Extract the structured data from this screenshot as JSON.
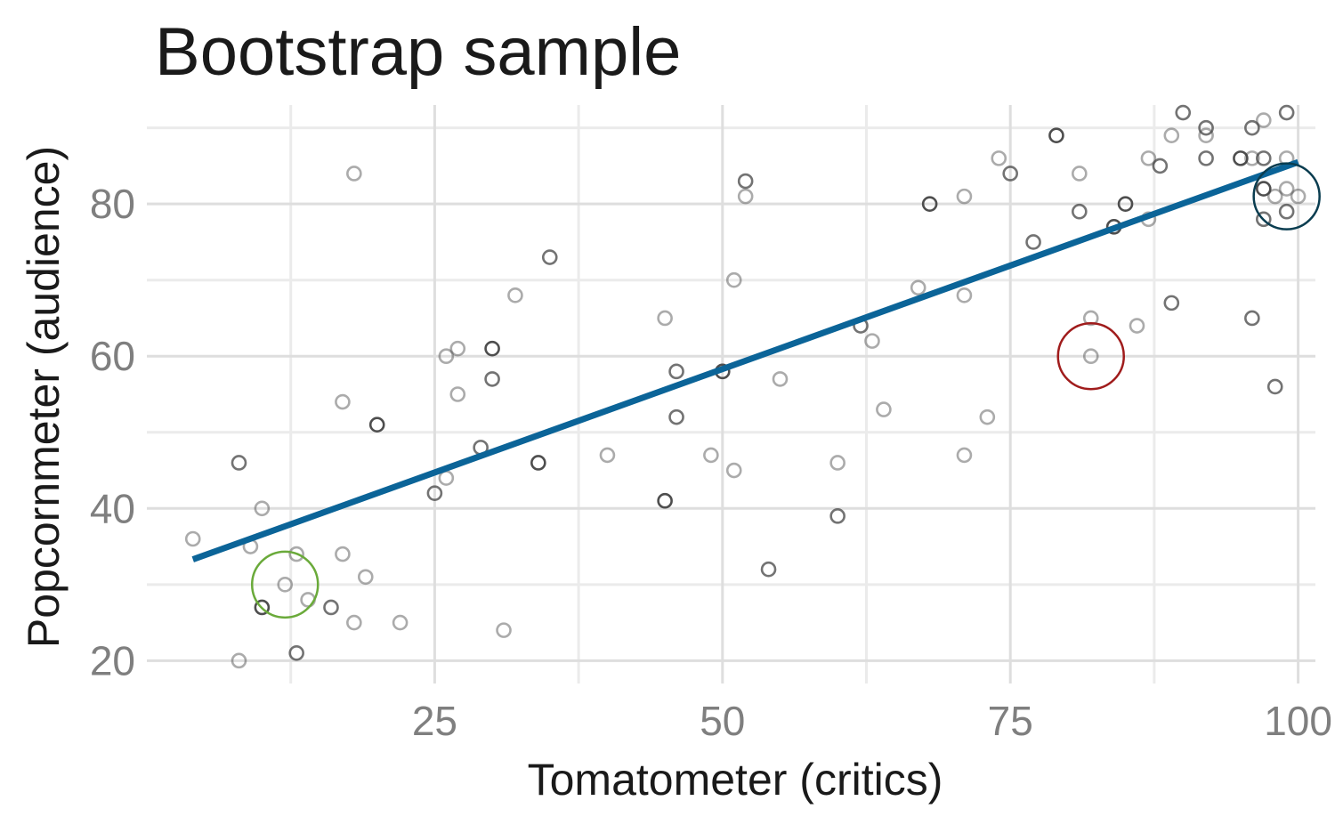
{
  "chart_data": {
    "type": "scatter",
    "title": "Bootstrap sample",
    "xlabel": "Tomatometer (critics)",
    "ylabel": "Popcornmeter (audience)",
    "xlim": [
      0,
      101.5
    ],
    "ylim": [
      17,
      93
    ],
    "x_ticks": [
      25,
      50,
      75,
      100
    ],
    "y_ticks": [
      20,
      40,
      60,
      80
    ],
    "x_minor": [
      12.5,
      37.5,
      62.5,
      87.5
    ],
    "y_minor": [
      30,
      50,
      70,
      90
    ],
    "grid": true,
    "colors": {
      "point": "#444444",
      "fit_line": "#0b6498",
      "highlight_green": "#6aaa3a",
      "highlight_red": "#a01c1c",
      "highlight_dark": "#0a3d50",
      "grid": "#dedede",
      "tick_text": "#7f7f7f"
    },
    "fit_line": {
      "x": [
        4,
        100
      ],
      "y": [
        33.3,
        85.5
      ]
    },
    "highlights": [
      {
        "x": 12,
        "y": 30,
        "color": "#6aaa3a"
      },
      {
        "x": 82,
        "y": 60,
        "color": "#a01c1c"
      },
      {
        "x": 99,
        "y": 81,
        "color": "#0a3d50"
      }
    ],
    "points": [
      {
        "x": 4,
        "y": 36,
        "w": 1
      },
      {
        "x": 8,
        "y": 46,
        "w": 2
      },
      {
        "x": 8,
        "y": 20,
        "w": 1
      },
      {
        "x": 9,
        "y": 35,
        "w": 1
      },
      {
        "x": 10,
        "y": 40,
        "w": 1
      },
      {
        "x": 10,
        "y": 27,
        "w": 3
      },
      {
        "x": 12,
        "y": 30,
        "w": 1
      },
      {
        "x": 13,
        "y": 34,
        "w": 1
      },
      {
        "x": 13,
        "y": 21,
        "w": 2
      },
      {
        "x": 14,
        "y": 28,
        "w": 1
      },
      {
        "x": 16,
        "y": 27,
        "w": 2
      },
      {
        "x": 17,
        "y": 54,
        "w": 1
      },
      {
        "x": 17,
        "y": 34,
        "w": 1
      },
      {
        "x": 18,
        "y": 84,
        "w": 1
      },
      {
        "x": 18,
        "y": 25,
        "w": 1
      },
      {
        "x": 19,
        "y": 31,
        "w": 1
      },
      {
        "x": 20,
        "y": 51,
        "w": 3
      },
      {
        "x": 22,
        "y": 25,
        "w": 1
      },
      {
        "x": 25,
        "y": 42,
        "w": 2
      },
      {
        "x": 26,
        "y": 60,
        "w": 1
      },
      {
        "x": 26,
        "y": 44,
        "w": 1
      },
      {
        "x": 27,
        "y": 61,
        "w": 1
      },
      {
        "x": 27,
        "y": 55,
        "w": 1
      },
      {
        "x": 29,
        "y": 48,
        "w": 2
      },
      {
        "x": 30,
        "y": 61,
        "w": 3
      },
      {
        "x": 30,
        "y": 57,
        "w": 2
      },
      {
        "x": 31,
        "y": 24,
        "w": 1
      },
      {
        "x": 32,
        "y": 68,
        "w": 1
      },
      {
        "x": 34,
        "y": 46,
        "w": 3
      },
      {
        "x": 35,
        "y": 73,
        "w": 2
      },
      {
        "x": 40,
        "y": 47,
        "w": 1
      },
      {
        "x": 45,
        "y": 65,
        "w": 1
      },
      {
        "x": 45,
        "y": 41,
        "w": 3
      },
      {
        "x": 46,
        "y": 58,
        "w": 2
      },
      {
        "x": 46,
        "y": 52,
        "w": 2
      },
      {
        "x": 49,
        "y": 47,
        "w": 1
      },
      {
        "x": 50,
        "y": 58,
        "w": 3
      },
      {
        "x": 51,
        "y": 70,
        "w": 1
      },
      {
        "x": 51,
        "y": 45,
        "w": 1
      },
      {
        "x": 52,
        "y": 83,
        "w": 2
      },
      {
        "x": 52,
        "y": 81,
        "w": 1
      },
      {
        "x": 54,
        "y": 32,
        "w": 2
      },
      {
        "x": 55,
        "y": 57,
        "w": 1
      },
      {
        "x": 60,
        "y": 46,
        "w": 1
      },
      {
        "x": 60,
        "y": 39,
        "w": 2
      },
      {
        "x": 62,
        "y": 64,
        "w": 2
      },
      {
        "x": 63,
        "y": 62,
        "w": 1
      },
      {
        "x": 64,
        "y": 53,
        "w": 1
      },
      {
        "x": 67,
        "y": 69,
        "w": 1
      },
      {
        "x": 68,
        "y": 80,
        "w": 3
      },
      {
        "x": 71,
        "y": 81,
        "w": 1
      },
      {
        "x": 71,
        "y": 68,
        "w": 1
      },
      {
        "x": 71,
        "y": 47,
        "w": 1
      },
      {
        "x": 73,
        "y": 52,
        "w": 1
      },
      {
        "x": 74,
        "y": 86,
        "w": 1
      },
      {
        "x": 75,
        "y": 84,
        "w": 2
      },
      {
        "x": 77,
        "y": 75,
        "w": 2
      },
      {
        "x": 79,
        "y": 89,
        "w": 3
      },
      {
        "x": 81,
        "y": 84,
        "w": 1
      },
      {
        "x": 81,
        "y": 79,
        "w": 2
      },
      {
        "x": 82,
        "y": 65,
        "w": 1
      },
      {
        "x": 82,
        "y": 60,
        "w": 1
      },
      {
        "x": 84,
        "y": 77,
        "w": 3
      },
      {
        "x": 85,
        "y": 80,
        "w": 3
      },
      {
        "x": 86,
        "y": 64,
        "w": 1
      },
      {
        "x": 87,
        "y": 86,
        "w": 1
      },
      {
        "x": 87,
        "y": 78,
        "w": 1
      },
      {
        "x": 88,
        "y": 85,
        "w": 2
      },
      {
        "x": 89,
        "y": 89,
        "w": 1
      },
      {
        "x": 89,
        "y": 67,
        "w": 2
      },
      {
        "x": 90,
        "y": 92,
        "w": 2
      },
      {
        "x": 92,
        "y": 90,
        "w": 2
      },
      {
        "x": 92,
        "y": 89,
        "w": 1
      },
      {
        "x": 92,
        "y": 86,
        "w": 2
      },
      {
        "x": 95,
        "y": 86,
        "w": 3
      },
      {
        "x": 96,
        "y": 90,
        "w": 2
      },
      {
        "x": 96,
        "y": 86,
        "w": 1
      },
      {
        "x": 96,
        "y": 65,
        "w": 2
      },
      {
        "x": 97,
        "y": 91,
        "w": 1
      },
      {
        "x": 97,
        "y": 86,
        "w": 2
      },
      {
        "x": 97,
        "y": 82,
        "w": 3
      },
      {
        "x": 97,
        "y": 78,
        "w": 2
      },
      {
        "x": 98,
        "y": 81,
        "w": 1
      },
      {
        "x": 98,
        "y": 56,
        "w": 2
      },
      {
        "x": 99,
        "y": 92,
        "w": 2
      },
      {
        "x": 99,
        "y": 86,
        "w": 1
      },
      {
        "x": 99,
        "y": 82,
        "w": 1
      },
      {
        "x": 99,
        "y": 79,
        "w": 2
      },
      {
        "x": 100,
        "y": 81,
        "w": 1
      }
    ]
  }
}
